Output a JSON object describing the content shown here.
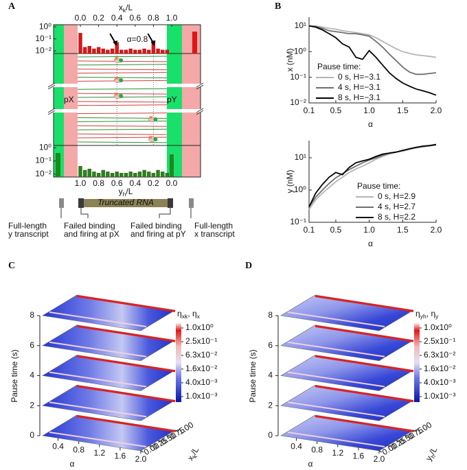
{
  "panel_labels": [
    "A",
    "B",
    "C",
    "D"
  ],
  "panel_a": {
    "x_axis_label": [
      "x",
      {
        "sub": "k"
      },
      "/L"
    ],
    "xlim": [
      0,
      1
    ],
    "xticks": [
      {
        "value": 0,
        "label": "0.0"
      },
      0.2,
      0.4,
      0.6,
      0.8,
      {
        "value": 1,
        "label": "1.0"
      }
    ],
    "bottom_axis_label": [
      "y",
      {
        "sub": "h"
      },
      "/L"
    ],
    "bottom_xlim": [
      1,
      0
    ],
    "bottom_xticks": [
      {
        "value": 1,
        "label": "1.0"
      },
      0.8,
      0.6,
      0.4,
      0.2,
      {
        "value": 0,
        "label": "0.0"
      }
    ],
    "log_y": true,
    "ylim": [
      0.006,
      1.5
    ],
    "yticks": [
      {
        "value": 1,
        "label": "10⁰"
      },
      {
        "value": 0.1,
        "label": "10⁻¹"
      },
      {
        "value": 0.01,
        "label": "10⁻²"
      }
    ],
    "annotation": "α=0.8",
    "promoter_labels": [
      "pX",
      "pY"
    ],
    "top_hist": {
      "color": "#e01414",
      "x": [
        0,
        0.05,
        0.1,
        0.15,
        0.2,
        0.25,
        0.3,
        0.35,
        0.4,
        0.45,
        0.5,
        0.55,
        0.6,
        0.65,
        0.7,
        0.75,
        0.8,
        0.85,
        0.9,
        0.95
      ],
      "values": [
        0.3,
        0.02,
        0.025,
        0.015,
        0.02,
        0.015,
        0.012,
        0.015,
        0.05,
        0.012,
        0.012,
        0.015,
        0.012,
        0.012,
        0.015,
        0.012,
        0.07,
        0.015,
        0.012,
        0.012
      ],
      "full_length_value": 0.4
    },
    "bottom_hist": {
      "color": "#1c8a1c",
      "x": [
        1,
        0.95,
        0.9,
        0.85,
        0.8,
        0.75,
        0.7,
        0.65,
        0.6,
        0.55,
        0.5,
        0.45,
        0.4,
        0.35,
        0.3,
        0.25,
        0.2,
        0.15,
        0.1,
        0.05,
        0
      ],
      "values": [
        0.04,
        0.02,
        0.025,
        0.015,
        0.012,
        0.02,
        0.015,
        0.012,
        0.015,
        0.012,
        0.012,
        0.015,
        0.012,
        0.015,
        0.02,
        0.015,
        0.012,
        0.02,
        0.015,
        0.012,
        0.3
      ],
      "full_length_value": 0.4
    },
    "rna_label": "Truncated RNA",
    "notes": [
      [
        "Full-length",
        "y transcript"
      ],
      [
        "Failed binding",
        "and firing at pX"
      ],
      [
        "Failed binding",
        "and firing at pY"
      ],
      [
        "Full-length",
        "x transcript"
      ]
    ]
  },
  "chart_data": [
    {
      "type": "line",
      "ylabel": "x (nM)",
      "xlabel": "α",
      "log_y": true,
      "xlim": [
        0.1,
        2.0
      ],
      "ylim": [
        0.01,
        22
      ],
      "xticks": [
        0.1,
        0.5,
        {
          "value": 1,
          "label": "1.0"
        },
        1.5,
        {
          "value": 2,
          "label": "2.0"
        }
      ],
      "yticks": [
        {
          "value": 0.01,
          "label": "10⁻²"
        },
        {
          "value": 0.1,
          "label": "10⁻¹"
        },
        {
          "value": 1,
          "label": "10⁰"
        },
        {
          "value": 10,
          "label": "10¹"
        }
      ],
      "x": [
        0.1,
        0.2,
        0.3,
        0.4,
        0.5,
        0.6,
        0.7,
        0.8,
        0.9,
        1.0,
        1.1,
        1.2,
        1.3,
        1.4,
        1.5,
        1.6,
        1.7,
        1.8,
        1.9,
        2.0
      ],
      "legend_title": "Pause time:",
      "series": [
        {
          "name": "0 s, H=−3.1",
          "color": "#b4b4b4",
          "values": [
            10,
            10,
            9,
            8,
            7.5,
            6.5,
            6,
            5.5,
            5,
            4.5,
            3.5,
            2.5,
            1.8,
            1.3,
            1.0,
            0.85,
            0.75,
            0.7,
            0.65,
            0.6
          ]
        },
        {
          "name": "4 s, H=−3.1",
          "color": "#6e6e6e",
          "values": [
            10,
            9.5,
            8,
            6.5,
            6,
            5.5,
            5,
            5,
            4.5,
            4,
            2.5,
            1.5,
            0.8,
            0.45,
            0.25,
            0.16,
            0.13,
            0.13,
            0.14,
            0.15
          ]
        },
        {
          "name": "8 s, H=−3.1",
          "color": "#000000",
          "values": [
            10,
            9,
            7,
            5,
            3.5,
            2,
            1.5,
            0.6,
            0.5,
            1.1,
            0.6,
            0.3,
            0.15,
            0.09,
            0.06,
            0.045,
            0.035,
            0.03,
            0.025,
            0.02
          ]
        }
      ]
    },
    {
      "type": "line",
      "ylabel": "y (nM)",
      "xlabel": "α",
      "log_y": true,
      "xlim": [
        0.1,
        2.0
      ],
      "ylim": [
        0.1,
        34
      ],
      "xticks": [
        0.1,
        0.5,
        {
          "value": 1,
          "label": "1.0"
        },
        1.5,
        {
          "value": 2,
          "label": "2.0"
        }
      ],
      "yticks": [
        {
          "value": 0.1,
          "label": "10⁻¹"
        },
        {
          "value": 1,
          "label": "10⁰"
        },
        {
          "value": 10,
          "label": "10¹"
        }
      ],
      "x": [
        0.1,
        0.2,
        0.3,
        0.4,
        0.5,
        0.6,
        0.7,
        0.8,
        0.9,
        1.0,
        1.1,
        1.2,
        1.3,
        1.4,
        1.5,
        1.6,
        1.7,
        1.8,
        1.9,
        2.0
      ],
      "legend_title": "Pause time:",
      "series": [
        {
          "name": "0 s, H=2.9",
          "color": "#b4b4b4",
          "values": [
            0.25,
            0.5,
            0.8,
            1.2,
            1.8,
            2.5,
            3.5,
            4.5,
            5.5,
            7,
            9,
            11,
            13,
            15,
            16,
            18,
            20,
            22,
            23,
            25
          ]
        },
        {
          "name": "4 s, H=2.7",
          "color": "#6e6e6e",
          "values": [
            0.3,
            0.6,
            1.0,
            1.6,
            2.4,
            3.2,
            4.3,
            5.5,
            7,
            8.5,
            10,
            12,
            14,
            15,
            17,
            19,
            21,
            22,
            24,
            25
          ]
        },
        {
          "name": "8 s, H=2.2",
          "color": "#000000",
          "values": [
            0.3,
            0.8,
            1.5,
            2.5,
            3.5,
            3,
            5,
            7,
            8,
            9,
            11,
            13,
            14,
            15,
            17,
            19,
            21,
            23,
            24,
            26
          ]
        }
      ]
    }
  ],
  "panel_c": {
    "zlabel": "Pause time (s)",
    "zlim": [
      0,
      8
    ],
    "zticks": [
      0,
      2,
      4,
      6,
      8
    ],
    "alpha_label": "α",
    "alpha_lim": [
      0.1,
      2.0
    ],
    "alpha_ticks": [
      0.4,
      0.8,
      1.2,
      1.6,
      {
        "value": 2,
        "label": "2.0"
      }
    ],
    "pos_label": [
      "x",
      {
        "sub": "k"
      },
      "/L"
    ],
    "pos_lim": [
      0,
      1
    ],
    "pos_ticks": [
      {
        "value": 0,
        "label": "0.00"
      },
      {
        "value": 0.25,
        "label": "0.25"
      },
      {
        "value": 0.5,
        "label": "0.50"
      },
      {
        "value": 0.75,
        "label": "0.75"
      },
      {
        "value": 1,
        "label": "1.00"
      }
    ],
    "colorbar_title": [
      "η",
      {
        "sub": "xk"
      },
      ", η",
      {
        "sub": "x"
      }
    ],
    "colorbar_ticks": [
      {
        "value": 1,
        "label": "1.0x10⁰"
      },
      {
        "value": 0.25,
        "label": "2.5x10⁻¹"
      },
      {
        "value": 0.063,
        "label": "6.3x10⁻²"
      },
      {
        "value": 0.016,
        "label": "1.6x10⁻²"
      },
      {
        "value": 0.004,
        "label": "4.0x10⁻³"
      },
      {
        "value": 0.001,
        "label": "1.0x10⁻³"
      }
    ]
  },
  "panel_d": {
    "zlabel": "Pause time (s)",
    "zlim": [
      0,
      8
    ],
    "zticks": [
      0,
      2,
      4,
      6,
      8
    ],
    "alpha_label": "α",
    "alpha_lim": [
      0.1,
      2.0
    ],
    "alpha_ticks": [
      0.4,
      0.8,
      1.2,
      1.6,
      {
        "value": 2,
        "label": "2.0"
      }
    ],
    "pos_label": [
      "y",
      {
        "sub": "h"
      },
      "/L"
    ],
    "pos_lim": [
      0,
      1
    ],
    "pos_ticks": [
      {
        "value": 0,
        "label": "0.00"
      },
      {
        "value": 0.25,
        "label": "0.25"
      },
      {
        "value": 0.5,
        "label": "0.50"
      },
      {
        "value": 0.75,
        "label": "0.75"
      },
      {
        "value": 1,
        "label": "1.00"
      }
    ],
    "colorbar_title": [
      "η",
      {
        "sub": "yh"
      },
      ", η",
      {
        "sub": "y"
      }
    ],
    "colorbar_ticks": [
      {
        "value": 1,
        "label": "1.0x10⁰"
      },
      {
        "value": 0.25,
        "label": "2.5x10⁻¹"
      },
      {
        "value": 0.063,
        "label": "6.3x10⁻²"
      },
      {
        "value": 0.016,
        "label": "1.6x10⁻²"
      },
      {
        "value": 0.004,
        "label": "4.0x10⁻³"
      },
      {
        "value": 0.001,
        "label": "1.0x10⁻³"
      }
    ]
  }
}
